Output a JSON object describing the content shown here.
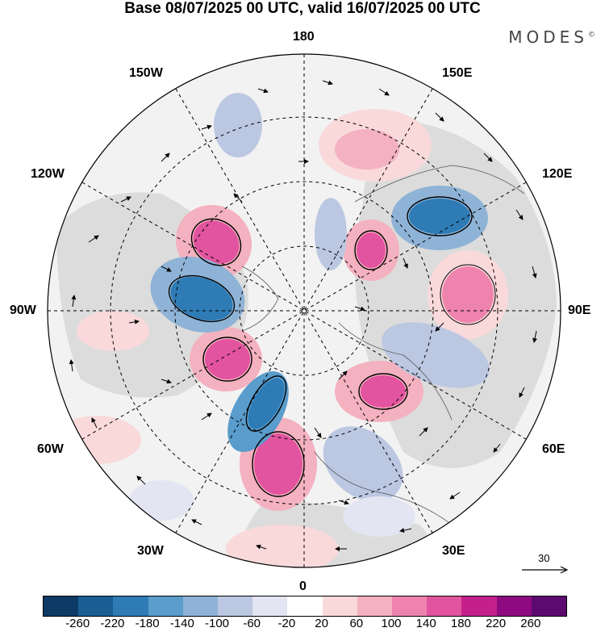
{
  "title": "Base 08/07/2025 00 UTC, valid 16/07/2025 00 UTC",
  "brand": "MODES",
  "brand_mark": "©",
  "longitude_labels": {
    "top": "180",
    "bottom": "0",
    "left": "90W",
    "right": "90E",
    "upper_left_1": "150W",
    "upper_left_2": "120W",
    "upper_right_1": "150E",
    "upper_right_2": "120E",
    "lower_left_1": "60W",
    "lower_left_2": "30W",
    "lower_right_1": "60E",
    "lower_right_2": "30E"
  },
  "reference_vector": "30",
  "colorbar": {
    "colors": [
      "#0d3b66",
      "#1a5f93",
      "#2e7bb5",
      "#5a9ccc",
      "#8eb3d6",
      "#bcc8e2",
      "#e4e5f2",
      "#ffffff",
      "#f9d9da",
      "#f4b1bf",
      "#ee84ad",
      "#e2549f",
      "#c4208c",
      "#8e0a80",
      "#5c0a70"
    ],
    "ticks": [
      "-260",
      "-220",
      "-180",
      "-140",
      "-100",
      "-60",
      "-20",
      "20",
      "60",
      "100",
      "140",
      "180",
      "220",
      "260"
    ]
  },
  "colors": {
    "land": "#dcdcdc",
    "ocean": "#f2f2f2"
  }
}
